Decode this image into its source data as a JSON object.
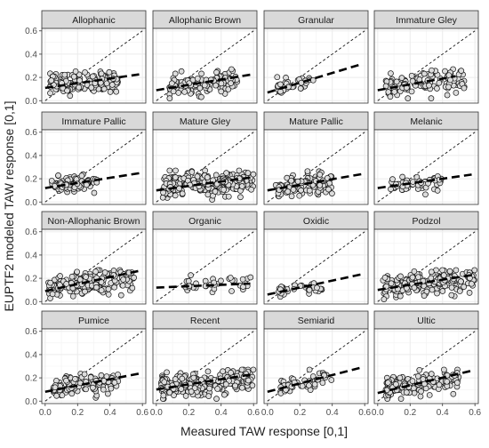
{
  "chart_data": {
    "type": "scatter",
    "facet_layout": "4 x 4 grid of panels with shared axes",
    "xlabel": "Measured TAW response [0,1]",
    "ylabel": "EUPTF2 modeled TAW response [0,1]",
    "xlim": [
      0,
      0.6
    ],
    "ylim": [
      0,
      0.6
    ],
    "x_ticks": [
      "0.0",
      "0.2",
      "0.4",
      "0.6"
    ],
    "y_ticks": [
      "0.0",
      "0.2",
      "0.4",
      "0.6"
    ],
    "grid": true,
    "reference_line": {
      "style": "dashed",
      "description": "1:1 line"
    },
    "fit_line": {
      "style": "long-dashed thick",
      "description": "regression line"
    },
    "point_style": {
      "fill": "#dcdcdc",
      "stroke": "#111111",
      "shape": "circle"
    },
    "colors": {
      "strip": "#d9d9d9",
      "grid": "#ebebeb",
      "points": "#dcdcdc"
    },
    "panels": [
      {
        "name": "Allophanic",
        "x_range": [
          0.03,
          0.45
        ],
        "y_mean": 0.16,
        "y_sd": 0.045,
        "n": 140,
        "fit": [
          0.11,
          0.2
        ],
        "fit_x": [
          0.0,
          0.58
        ]
      },
      {
        "name": "Allophanic Brown",
        "x_range": [
          0.08,
          0.5
        ],
        "y_mean": 0.14,
        "y_sd": 0.045,
        "n": 120,
        "fit": [
          0.09,
          0.23
        ],
        "fit_x": [
          0.0,
          0.58
        ]
      },
      {
        "name": "Granular",
        "x_range": [
          0.06,
          0.3
        ],
        "y_mean": 0.12,
        "y_sd": 0.035,
        "n": 35,
        "fit": [
          0.07,
          0.42
        ],
        "fit_x": [
          0.0,
          0.58
        ]
      },
      {
        "name": "Immature Gley",
        "x_range": [
          0.05,
          0.55
        ],
        "y_mean": 0.14,
        "y_sd": 0.05,
        "n": 110,
        "fit": [
          0.09,
          0.25
        ],
        "fit_x": [
          0.0,
          0.48
        ]
      },
      {
        "name": "Immature Pallic",
        "x_range": [
          0.04,
          0.32
        ],
        "y_mean": 0.15,
        "y_sd": 0.035,
        "n": 90,
        "fit": [
          0.12,
          0.22
        ],
        "fit_x": [
          0.0,
          0.58
        ]
      },
      {
        "name": "Mature Gley",
        "x_range": [
          0.04,
          0.6
        ],
        "y_mean": 0.15,
        "y_sd": 0.05,
        "n": 230,
        "fit": [
          0.1,
          0.19
        ],
        "fit_x": [
          0.0,
          0.58
        ]
      },
      {
        "name": "Mature Pallic",
        "x_range": [
          0.05,
          0.4
        ],
        "y_mean": 0.14,
        "y_sd": 0.045,
        "n": 120,
        "fit": [
          0.1,
          0.24
        ],
        "fit_x": [
          0.0,
          0.58
        ]
      },
      {
        "name": "Melanic",
        "x_range": [
          0.08,
          0.4
        ],
        "y_mean": 0.15,
        "y_sd": 0.035,
        "n": 60,
        "fit": [
          0.12,
          0.2
        ],
        "fit_x": [
          0.0,
          0.58
        ]
      },
      {
        "name": "Non-Allophanic Brown",
        "x_range": [
          0.02,
          0.55
        ],
        "y_mean": 0.14,
        "y_sd": 0.05,
        "n": 180,
        "fit": [
          0.09,
          0.3
        ],
        "fit_x": [
          0.0,
          0.58
        ]
      },
      {
        "name": "Organic",
        "x_range": [
          0.18,
          0.6
        ],
        "y_mean": 0.15,
        "y_sd": 0.04,
        "n": 35,
        "fit": [
          0.12,
          0.06
        ],
        "fit_x": [
          0.0,
          0.58
        ]
      },
      {
        "name": "Oxidic",
        "x_range": [
          0.05,
          0.35
        ],
        "y_mean": 0.1,
        "y_sd": 0.025,
        "n": 30,
        "fit": [
          0.06,
          0.3
        ],
        "fit_x": [
          0.0,
          0.58
        ]
      },
      {
        "name": "Podzol",
        "x_range": [
          0.03,
          0.6
        ],
        "y_mean": 0.15,
        "y_sd": 0.05,
        "n": 170,
        "fit": [
          0.1,
          0.22
        ],
        "fit_x": [
          0.0,
          0.58
        ]
      },
      {
        "name": "Pumice",
        "x_range": [
          0.05,
          0.45
        ],
        "y_mean": 0.13,
        "y_sd": 0.045,
        "n": 100,
        "fit": [
          0.08,
          0.27
        ],
        "fit_x": [
          0.0,
          0.58
        ]
      },
      {
        "name": "Recent",
        "x_range": [
          0.03,
          0.6
        ],
        "y_mean": 0.15,
        "y_sd": 0.05,
        "n": 230,
        "fit": [
          0.1,
          0.22
        ],
        "fit_x": [
          0.0,
          0.58
        ]
      },
      {
        "name": "Semiarid",
        "x_range": [
          0.08,
          0.4
        ],
        "y_mean": 0.15,
        "y_sd": 0.04,
        "n": 45,
        "fit": [
          0.08,
          0.36
        ],
        "fit_x": [
          0.0,
          0.58
        ]
      },
      {
        "name": "Ultic",
        "x_range": [
          0.05,
          0.5
        ],
        "y_mean": 0.13,
        "y_sd": 0.05,
        "n": 160,
        "fit": [
          0.07,
          0.33
        ],
        "fit_x": [
          0.0,
          0.58
        ]
      }
    ]
  }
}
